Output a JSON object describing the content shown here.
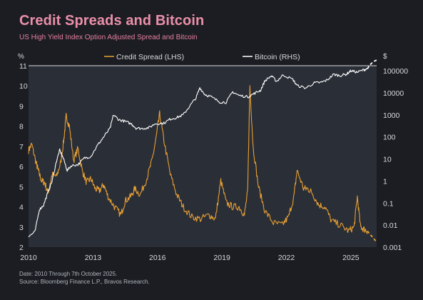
{
  "header": {
    "title": "Credit Spreads and Bitcoin",
    "subtitle": "US High Yield Index Option Adjusted Spread and Bitcoin"
  },
  "footer": {
    "date_note": "Date: 2010 Through 7th October 2025.",
    "source_note": "Source: Bloomberg Finance L.P., Bravos Research."
  },
  "colors": {
    "background": "#1b1d22",
    "plot_background": "#2a2e36",
    "spread_line": "#e9a033",
    "bitcoin_line": "#ffffff",
    "title": "#ea8fa9",
    "axis_text": "#d6d8dc"
  },
  "chart_data": {
    "type": "line",
    "left_unit": "%",
    "right_unit": "$",
    "xlim": [
      2010,
      2026.2
    ],
    "ylim_left": [
      2,
      11
    ],
    "ylim_right_log": [
      0.001,
      100000
    ],
    "x_ticks": [
      "2010",
      "2013",
      "2016",
      "2019",
      "2022",
      "2025"
    ],
    "x_tick_values": [
      2010,
      2013,
      2016,
      2019,
      2022,
      2025
    ],
    "y_ticks_left": [
      "2",
      "3",
      "4",
      "5",
      "6",
      "7",
      "8",
      "9",
      "10",
      "11"
    ],
    "y_tick_values_left": [
      2,
      3,
      4,
      5,
      6,
      7,
      8,
      9,
      10,
      11
    ],
    "y_ticks_right": [
      "0.001",
      "0.01",
      "0.1",
      "1",
      "10",
      "100",
      "1000",
      "10000",
      "100000"
    ],
    "y_tick_values_right": [
      0.001,
      0.01,
      0.1,
      1,
      10,
      100,
      1000,
      10000,
      100000
    ],
    "legend": [
      "Credit Spread (LHS)",
      "Bitcoin (RHS)"
    ],
    "legend_position": "top",
    "grid": false,
    "series": [
      {
        "name": "Credit Spread (LHS)",
        "axis": "left",
        "color": "#e9a033",
        "x": [
          2010.0,
          2010.15,
          2010.35,
          2010.45,
          2010.6,
          2010.75,
          2010.9,
          2011.1,
          2011.3,
          2011.5,
          2011.65,
          2011.75,
          2011.9,
          2012.1,
          2012.3,
          2012.5,
          2012.7,
          2012.9,
          2013.1,
          2013.3,
          2013.5,
          2013.7,
          2014.0,
          2014.3,
          2014.5,
          2014.75,
          2014.95,
          2015.2,
          2015.5,
          2015.75,
          2015.95,
          2016.1,
          2016.3,
          2016.6,
          2016.9,
          2017.2,
          2017.6,
          2018.0,
          2018.4,
          2018.7,
          2018.95,
          2019.2,
          2019.5,
          2019.8,
          2020.05,
          2020.2,
          2020.3,
          2020.45,
          2020.7,
          2021.0,
          2021.4,
          2021.8,
          2022.1,
          2022.35,
          2022.5,
          2022.8,
          2023.0,
          2023.2,
          2023.5,
          2023.8,
          2024.1,
          2024.5,
          2024.9,
          2025.15,
          2025.3,
          2025.45,
          2025.6,
          2025.77
        ],
        "values": [
          6.8,
          7.1,
          6.2,
          5.8,
          5.3,
          5.2,
          4.7,
          5.6,
          5.5,
          6.2,
          7.4,
          8.5,
          8.0,
          6.3,
          6.9,
          5.8,
          5.2,
          5.4,
          4.9,
          4.8,
          5.1,
          4.5,
          4.0,
          3.6,
          4.3,
          4.5,
          4.9,
          4.6,
          5.4,
          6.3,
          7.5,
          8.6,
          7.3,
          5.6,
          4.6,
          4.0,
          3.5,
          3.4,
          3.6,
          3.4,
          5.3,
          4.2,
          4.0,
          4.0,
          3.6,
          4.8,
          10.0,
          7.0,
          5.0,
          3.8,
          3.2,
          3.1,
          3.5,
          4.5,
          5.8,
          4.9,
          4.9,
          4.7,
          4.1,
          4.0,
          3.3,
          3.1,
          2.8,
          3.0,
          4.5,
          3.0,
          2.9,
          2.8
        ]
      },
      {
        "name": "Bitcoin (RHS)",
        "axis": "right",
        "color": "#ffffff",
        "x": [
          2010.0,
          2010.3,
          2010.5,
          2010.7,
          2010.9,
          2011.1,
          2011.3,
          2011.45,
          2011.6,
          2011.8,
          2012.0,
          2012.3,
          2012.6,
          2012.9,
          2013.2,
          2013.5,
          2013.8,
          2013.95,
          2014.2,
          2014.5,
          2014.8,
          2015.0,
          2015.3,
          2015.6,
          2015.9,
          2016.3,
          2016.6,
          2016.9,
          2017.2,
          2017.5,
          2017.8,
          2017.97,
          2018.2,
          2018.5,
          2018.9,
          2019.2,
          2019.5,
          2019.8,
          2020.2,
          2020.5,
          2020.8,
          2021.0,
          2021.3,
          2021.55,
          2021.85,
          2022.3,
          2022.5,
          2022.9,
          2023.3,
          2023.6,
          2023.9,
          2024.2,
          2024.5,
          2024.8,
          2025.0,
          2025.3,
          2025.6,
          2025.77
        ],
        "values": [
          0.003,
          0.005,
          0.05,
          0.08,
          0.3,
          1.0,
          8.0,
          25.0,
          12.0,
          3.0,
          5.0,
          5.5,
          11.0,
          13.0,
          40.0,
          100.0,
          250.0,
          1000.0,
          600.0,
          500.0,
          380.0,
          250.0,
          240.0,
          260.0,
          400.0,
          420.0,
          650.0,
          750.0,
          1000.0,
          2500.0,
          6000.0,
          17000.0,
          8500.0,
          6500.0,
          3800.0,
          3700.0,
          11000.0,
          7500.0,
          6500.0,
          9200.0,
          13000.0,
          35000.0,
          58000.0,
          33000.0,
          65000.0,
          40000.0,
          21000.0,
          16500.0,
          28000.0,
          29000.0,
          38000.0,
          68000.0,
          60000.0,
          70000.0,
          100000.0,
          85000.0,
          110000.0,
          122000.0
        ]
      }
    ],
    "projection": {
      "spread_x": [
        2025.77,
        2026.2
      ],
      "spread_values": [
        2.8,
        2.25
      ],
      "bitcoin_x": [
        2025.77,
        2026.2
      ],
      "bitcoin_values": [
        122000.0,
        300000.0
      ]
    }
  }
}
